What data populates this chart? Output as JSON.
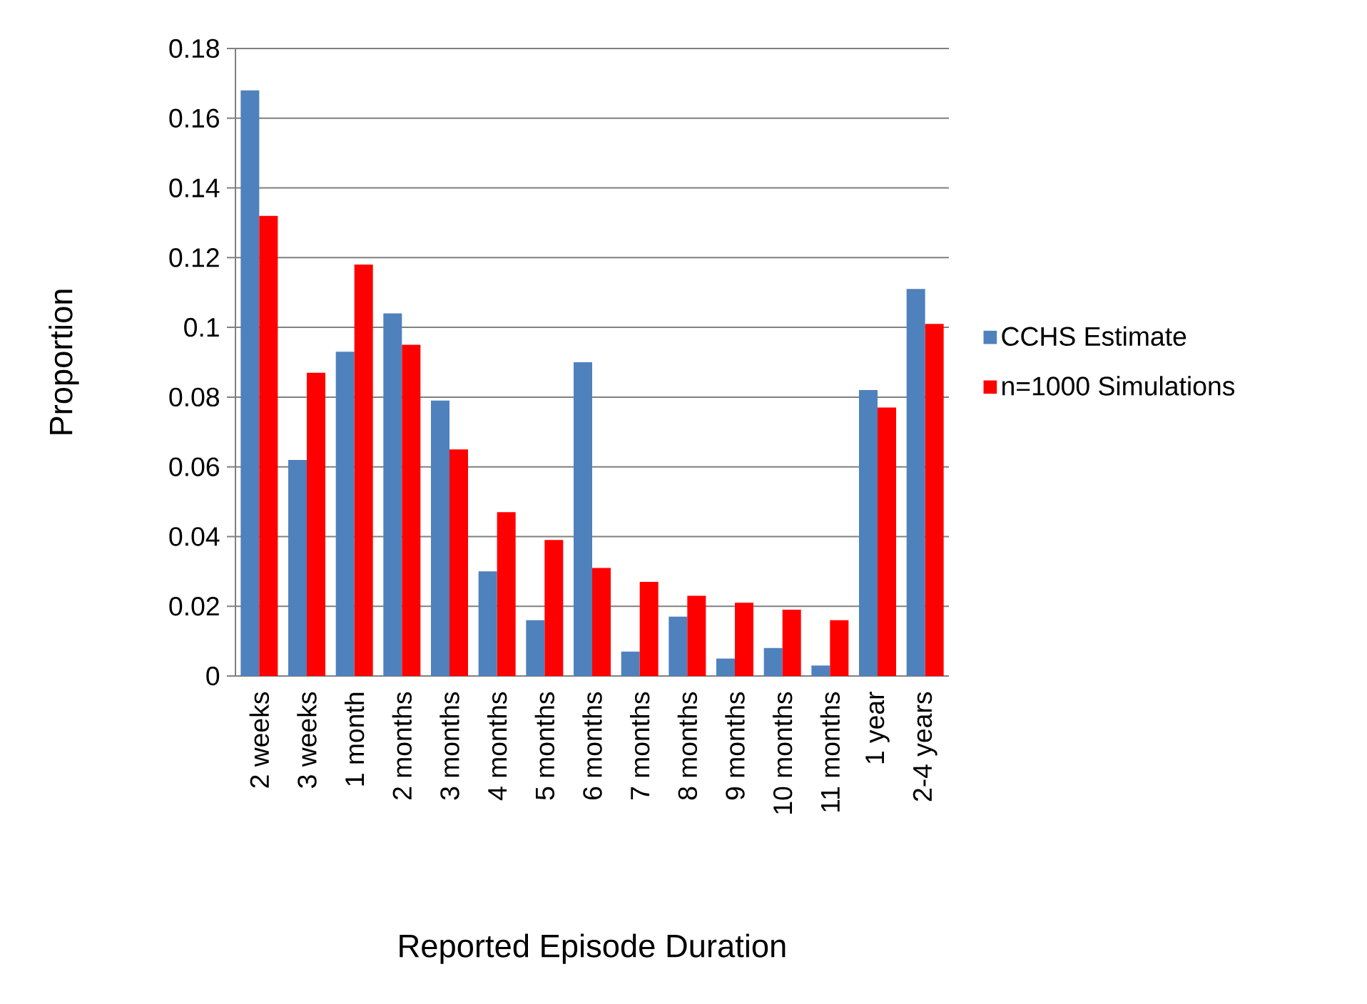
{
  "chart_data": {
    "type": "bar",
    "xlabel": "Reported Episode Duration",
    "ylabel": "Proportion",
    "categories": [
      "2 weeks",
      "3 weeks",
      "1 month",
      "2 months",
      "3 months",
      "4 months",
      "5 months",
      "6 months",
      "7 months",
      "8 months",
      "9 months",
      "10 months",
      "11 months",
      "1 year",
      "2-4 years"
    ],
    "series": [
      {
        "name": "CCHS Estimate",
        "color": "#4f81bd",
        "values": [
          0.168,
          0.062,
          0.093,
          0.104,
          0.079,
          0.03,
          0.016,
          0.09,
          0.007,
          0.017,
          0.005,
          0.008,
          0.003,
          0.082,
          0.111
        ]
      },
      {
        "name": "n=1000 Simulations",
        "color": "#ff0000",
        "values": [
          0.132,
          0.087,
          0.118,
          0.095,
          0.065,
          0.047,
          0.039,
          0.031,
          0.027,
          0.023,
          0.021,
          0.019,
          0.016,
          0.077,
          0.101
        ]
      }
    ],
    "ylim": [
      0,
      0.18
    ],
    "yticks": [
      0,
      0.02,
      0.04,
      0.06,
      0.08,
      0.1,
      0.12,
      0.14,
      0.16,
      0.18
    ],
    "grid": "y",
    "legend": "right"
  }
}
